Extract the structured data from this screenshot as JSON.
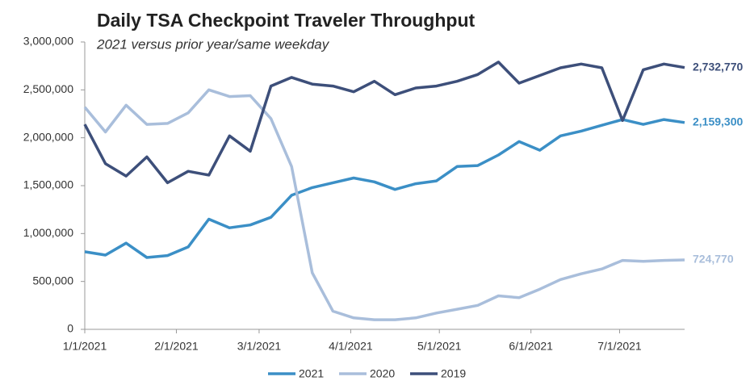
{
  "chart_data": {
    "type": "line",
    "title": "Daily TSA Checkpoint Traveler Throughput",
    "subtitle": "2021 versus prior year/same weekday",
    "x": [
      "2021-01-01",
      "2021-01-08",
      "2021-01-15",
      "2021-01-22",
      "2021-01-29",
      "2021-02-05",
      "2021-02-12",
      "2021-02-19",
      "2021-02-26",
      "2021-03-05",
      "2021-03-12",
      "2021-03-19",
      "2021-03-26",
      "2021-04-02",
      "2021-04-09",
      "2021-04-16",
      "2021-04-23",
      "2021-04-30",
      "2021-05-07",
      "2021-05-14",
      "2021-05-21",
      "2021-05-28",
      "2021-06-04",
      "2021-06-11",
      "2021-06-18",
      "2021-06-25",
      "2021-07-02",
      "2021-07-09",
      "2021-07-16",
      "2021-07-23"
    ],
    "xlim": [
      "2021-01-01",
      "2021-07-23"
    ],
    "xticks": [
      {
        "value": "2021-01-01",
        "label": "1/1/2021"
      },
      {
        "value": "2021-02-01",
        "label": "2/1/2021"
      },
      {
        "value": "2021-03-01",
        "label": "3/1/2021"
      },
      {
        "value": "2021-04-01",
        "label": "4/1/2021"
      },
      {
        "value": "2021-05-01",
        "label": "5/1/2021"
      },
      {
        "value": "2021-06-01",
        "label": "6/1/2021"
      },
      {
        "value": "2021-07-01",
        "label": "7/1/2021"
      }
    ],
    "ylim": [
      0,
      3000000
    ],
    "yticks": [
      0,
      {
        "value": 500000,
        "label": "500,000"
      },
      {
        "value": 1000000,
        "label": "1,000,000"
      },
      {
        "value": 1500000,
        "label": "1,500,000"
      },
      {
        "value": 2000000,
        "label": "2,000,000"
      },
      {
        "value": 2500000,
        "label": "2,500,000"
      },
      {
        "value": 3000000,
        "label": "3,000,000"
      }
    ],
    "grid": false,
    "legend": "bottom",
    "series": [
      {
        "name": "2021",
        "color": "#3b8fc6",
        "label": "2,159,300",
        "values": [
          810000,
          775000,
          900000,
          750000,
          770000,
          860000,
          1150000,
          1060000,
          1090000,
          1170000,
          1400000,
          1480000,
          1530000,
          1580000,
          1540000,
          1460000,
          1520000,
          1550000,
          1700000,
          1710000,
          1820000,
          1960000,
          1870000,
          2020000,
          2070000,
          2130000,
          2190000,
          2140000,
          2190000,
          2159300
        ]
      },
      {
        "name": "2020",
        "color": "#a9bedb",
        "label": "724,770",
        "values": [
          2320000,
          2060000,
          2340000,
          2140000,
          2150000,
          2260000,
          2500000,
          2430000,
          2440000,
          2200000,
          1700000,
          590000,
          190000,
          120000,
          100000,
          100000,
          120000,
          170000,
          210000,
          250000,
          350000,
          330000,
          420000,
          520000,
          580000,
          630000,
          720000,
          710000,
          720000,
          724770
        ]
      },
      {
        "name": "2019",
        "color": "#3d4f7a",
        "label": "2,732,770",
        "values": [
          2140000,
          1730000,
          1600000,
          1800000,
          1530000,
          1650000,
          1610000,
          2020000,
          1860000,
          2540000,
          2630000,
          2560000,
          2540000,
          2480000,
          2590000,
          2450000,
          2520000,
          2540000,
          2590000,
          2660000,
          2790000,
          2570000,
          2650000,
          2730000,
          2770000,
          2730000,
          2180000,
          2710000,
          2770000,
          2732770
        ]
      }
    ]
  }
}
